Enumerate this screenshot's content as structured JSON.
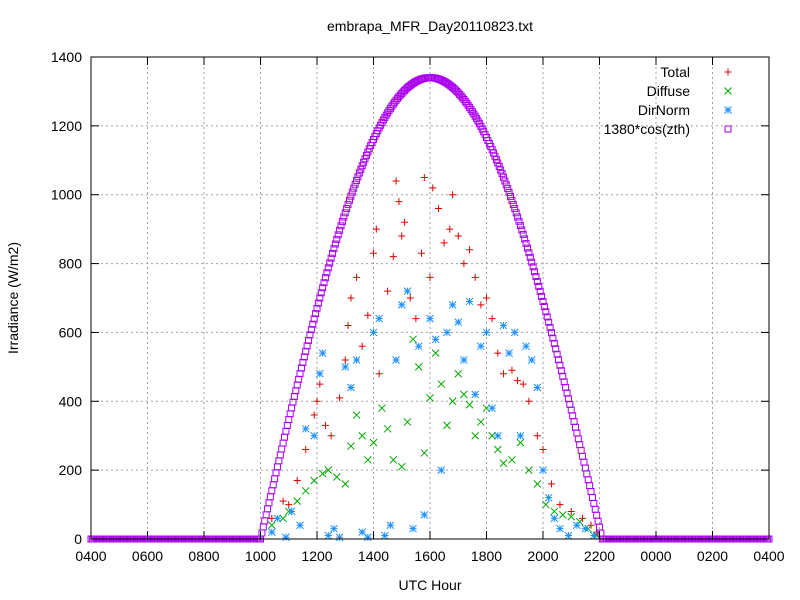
{
  "chart_data": {
    "type": "scatter",
    "title": "embrapa_MFR_Day20110823.txt",
    "xlabel": "UTC Hour",
    "ylabel": "Irradiance (W/m2)",
    "x_ticks": [
      "0400",
      "0600",
      "0800",
      "1000",
      "1200",
      "1400",
      "1600",
      "1800",
      "2000",
      "2200",
      "0000",
      "0200",
      "0400"
    ],
    "x_range_hours": [
      4,
      28
    ],
    "y_ticks": [
      "0",
      "200",
      "400",
      "600",
      "800",
      "1000",
      "1200",
      "1400"
    ],
    "ylim": [
      0,
      1400
    ],
    "grid": true,
    "legend_position": "top-right",
    "series": [
      {
        "name": "Total",
        "marker": "plus",
        "color": "#dd0000",
        "points": [
          [
            10.4,
            60
          ],
          [
            10.8,
            110
          ],
          [
            11.0,
            100
          ],
          [
            11.3,
            170
          ],
          [
            11.6,
            260
          ],
          [
            11.9,
            360
          ],
          [
            12.0,
            400
          ],
          [
            12.1,
            450
          ],
          [
            12.3,
            330
          ],
          [
            12.5,
            300
          ],
          [
            12.8,
            410
          ],
          [
            13.0,
            520
          ],
          [
            13.1,
            620
          ],
          [
            13.2,
            700
          ],
          [
            13.4,
            760
          ],
          [
            13.6,
            560
          ],
          [
            13.8,
            650
          ],
          [
            14.0,
            830
          ],
          [
            14.1,
            900
          ],
          [
            14.2,
            480
          ],
          [
            14.5,
            720
          ],
          [
            14.7,
            820
          ],
          [
            14.8,
            1040
          ],
          [
            14.9,
            980
          ],
          [
            15.0,
            880
          ],
          [
            15.1,
            920
          ],
          [
            15.3,
            700
          ],
          [
            15.5,
            640
          ],
          [
            15.7,
            830
          ],
          [
            15.8,
            1050
          ],
          [
            16.0,
            760
          ],
          [
            16.1,
            1020
          ],
          [
            16.3,
            960
          ],
          [
            16.5,
            860
          ],
          [
            16.7,
            900
          ],
          [
            16.8,
            1000
          ],
          [
            17.0,
            880
          ],
          [
            17.2,
            800
          ],
          [
            17.4,
            840
          ],
          [
            17.6,
            760
          ],
          [
            17.8,
            680
          ],
          [
            18.0,
            700
          ],
          [
            18.2,
            640
          ],
          [
            18.4,
            540
          ],
          [
            18.6,
            480
          ],
          [
            18.9,
            490
          ],
          [
            19.1,
            460
          ],
          [
            19.3,
            450
          ],
          [
            19.5,
            400
          ],
          [
            19.8,
            300
          ],
          [
            20.0,
            260
          ],
          [
            20.3,
            160
          ],
          [
            20.6,
            100
          ],
          [
            21.0,
            80
          ],
          [
            21.4,
            60
          ],
          [
            21.7,
            40
          ],
          [
            21.9,
            20
          ]
        ]
      },
      {
        "name": "Diffuse",
        "marker": "cross",
        "color": "#00aa00",
        "points": [
          [
            10.4,
            40
          ],
          [
            10.8,
            60
          ],
          [
            11.0,
            80
          ],
          [
            11.3,
            110
          ],
          [
            11.6,
            140
          ],
          [
            11.9,
            170
          ],
          [
            12.2,
            190
          ],
          [
            12.4,
            200
          ],
          [
            12.7,
            180
          ],
          [
            13.0,
            160
          ],
          [
            13.2,
            270
          ],
          [
            13.4,
            360
          ],
          [
            13.6,
            300
          ],
          [
            13.8,
            230
          ],
          [
            14.0,
            280
          ],
          [
            14.3,
            380
          ],
          [
            14.5,
            320
          ],
          [
            14.7,
            230
          ],
          [
            15.0,
            210
          ],
          [
            15.2,
            340
          ],
          [
            15.4,
            580
          ],
          [
            15.6,
            500
          ],
          [
            15.8,
            250
          ],
          [
            16.0,
            410
          ],
          [
            16.2,
            540
          ],
          [
            16.4,
            450
          ],
          [
            16.6,
            330
          ],
          [
            16.8,
            400
          ],
          [
            17.0,
            480
          ],
          [
            17.2,
            420
          ],
          [
            17.4,
            390
          ],
          [
            17.6,
            300
          ],
          [
            17.8,
            340
          ],
          [
            18.0,
            380
          ],
          [
            18.2,
            300
          ],
          [
            18.4,
            260
          ],
          [
            18.6,
            220
          ],
          [
            18.9,
            230
          ],
          [
            19.2,
            280
          ],
          [
            19.5,
            200
          ],
          [
            19.8,
            160
          ],
          [
            20.1,
            100
          ],
          [
            20.4,
            80
          ],
          [
            20.7,
            70
          ],
          [
            21.0,
            65
          ],
          [
            21.3,
            50
          ],
          [
            21.6,
            30
          ],
          [
            21.9,
            10
          ]
        ]
      },
      {
        "name": "DirNorm",
        "marker": "star",
        "color": "#1e90ff",
        "points": [
          [
            10.4,
            20
          ],
          [
            10.6,
            60
          ],
          [
            10.9,
            5
          ],
          [
            11.1,
            80
          ],
          [
            11.4,
            40
          ],
          [
            11.6,
            320
          ],
          [
            11.9,
            300
          ],
          [
            12.1,
            480
          ],
          [
            12.2,
            540
          ],
          [
            12.4,
            10
          ],
          [
            12.6,
            30
          ],
          [
            12.8,
            5
          ],
          [
            13.0,
            500
          ],
          [
            13.2,
            440
          ],
          [
            13.4,
            520
          ],
          [
            13.6,
            20
          ],
          [
            13.8,
            5
          ],
          [
            14.0,
            600
          ],
          [
            14.2,
            640
          ],
          [
            14.4,
            10
          ],
          [
            14.6,
            40
          ],
          [
            14.8,
            520
          ],
          [
            15.0,
            680
          ],
          [
            15.2,
            720
          ],
          [
            15.4,
            30
          ],
          [
            15.6,
            560
          ],
          [
            15.8,
            70
          ],
          [
            16.0,
            640
          ],
          [
            16.2,
            580
          ],
          [
            16.4,
            200
          ],
          [
            16.6,
            600
          ],
          [
            16.8,
            680
          ],
          [
            17.0,
            630
          ],
          [
            17.2,
            520
          ],
          [
            17.4,
            690
          ],
          [
            17.6,
            420
          ],
          [
            17.8,
            560
          ],
          [
            18.0,
            600
          ],
          [
            18.2,
            380
          ],
          [
            18.4,
            300
          ],
          [
            18.6,
            620
          ],
          [
            18.8,
            540
          ],
          [
            19.0,
            600
          ],
          [
            19.2,
            300
          ],
          [
            19.4,
            560
          ],
          [
            19.6,
            520
          ],
          [
            19.8,
            440
          ],
          [
            20.0,
            200
          ],
          [
            20.2,
            120
          ],
          [
            20.4,
            60
          ],
          [
            20.6,
            30
          ],
          [
            20.9,
            10
          ],
          [
            21.2,
            40
          ],
          [
            21.5,
            30
          ],
          [
            21.8,
            10
          ]
        ]
      },
      {
        "name": "1380*cos(zth)",
        "marker": "square",
        "color": "#aa00ee",
        "curve": {
          "x_start": 10.0,
          "x_peak": 16.0,
          "x_end": 22.1,
          "y_peak": 1340
        }
      }
    ]
  }
}
